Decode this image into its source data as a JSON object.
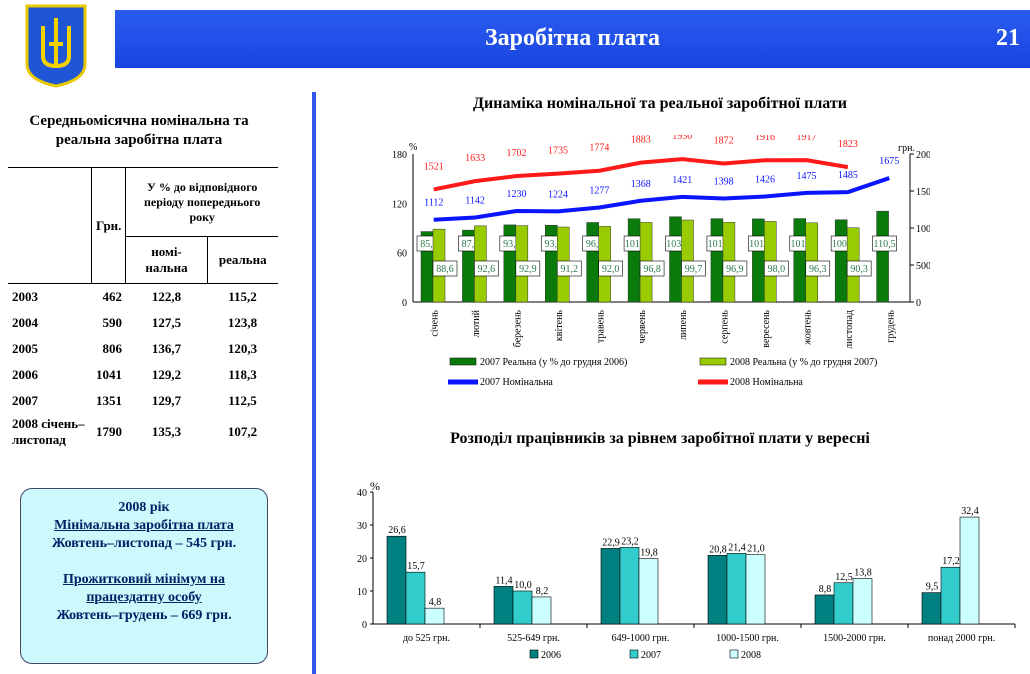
{
  "header": {
    "title": "Заробітна плата",
    "page": "21"
  },
  "left": {
    "title": "Середньомісячна номінальна та реальна заробітна плата",
    "col_uah": "Грн.",
    "col_group": "У % до відповідного періоду попереднього року",
    "col_nom": "номі-нальна",
    "col_real": "реальна",
    "rows": [
      [
        "2003",
        "462",
        "122,8",
        "115,2"
      ],
      [
        "2004",
        "590",
        "127,5",
        "123,8"
      ],
      [
        "2005",
        "806",
        "136,7",
        "120,3"
      ],
      [
        "2006",
        "1041",
        "129,2",
        "118,3"
      ],
      [
        "2007",
        "1351",
        "129,7",
        "112,5"
      ],
      [
        "2008 січень–листопад",
        "1790",
        "135,3",
        "107,2"
      ]
    ]
  },
  "box": {
    "l1": "2008 рік",
    "l2": "Мінімальна заробітна плата",
    "l3": "Жовтень–листопад – 545 грн.",
    "l4": "Прожитковий мінімум на працездатну особу",
    "l5": "Жовтень–грудень – 669 грн."
  },
  "chart_data": [
    {
      "type": "bar+line",
      "title": "Динаміка номінальної та реальної заробітної плати",
      "ylabel": "%",
      "y2label": "грн.",
      "ylim": [
        0,
        180
      ],
      "y2lim": [
        0,
        2000
      ],
      "yticks": [
        "0",
        "60",
        "120",
        "180"
      ],
      "y2ticks": [
        "0",
        "500",
        "1000",
        "1500",
        "2000"
      ],
      "categories": [
        "січень",
        "лютий",
        "березень",
        "квітень",
        "травень",
        "червень",
        "липень",
        "серпень",
        "вересень",
        "жовтень",
        "листопад",
        "грудень"
      ],
      "series": [
        {
          "name": "2007 Реальна (у % до грудня 2006)",
          "kind": "bar",
          "color": "#0a7a0a",
          "values": [
            85.7,
            87.4,
            93.8,
            93.4,
            96.7,
            101.3,
            103.7,
            101.4,
            101.1,
            101.5,
            100.0,
            110.5
          ],
          "labels": [
            "85,7",
            "87,4",
            "93,8",
            "93,4",
            "96,7",
            "101,3",
            "103,7",
            "101,4",
            "101,1",
            "101,5",
            "100,0",
            "110,5"
          ]
        },
        {
          "name": "2008 Реальна (у % до грудня 2007)",
          "kind": "bar",
          "color": "#99cc00",
          "values": [
            88.6,
            92.6,
            92.9,
            91.2,
            92.0,
            96.8,
            99.7,
            96.9,
            98.0,
            96.3,
            90.3,
            null
          ],
          "labels": [
            "88,6",
            "92,6",
            "92,9",
            "91,2",
            "92,0",
            "96,8",
            "99,7",
            "96,9",
            "98,0",
            "96,3",
            "90,3",
            ""
          ]
        },
        {
          "name": "2007 Номінальна",
          "kind": "line",
          "color": "#0a14ff",
          "values": [
            1112,
            1142,
            1230,
            1224,
            1277,
            1368,
            1421,
            1398,
            1426,
            1475,
            1485,
            1675
          ]
        },
        {
          "name": "2008 Номінальна",
          "kind": "line",
          "color": "#ff1a1a",
          "values": [
            1521,
            1633,
            1702,
            1735,
            1774,
            1883,
            1930,
            1872,
            1916,
            1917,
            1823,
            null
          ]
        }
      ],
      "legend": "bottom"
    },
    {
      "type": "bar",
      "title": "Розподіл працівників за рівнем заробітної плати у вересні",
      "ylabel": "%",
      "ylim": [
        0,
        40
      ],
      "yticks": [
        "0",
        "10",
        "20",
        "30",
        "40"
      ],
      "categories": [
        "до 525 грн.",
        "525-649 грн.",
        "649-1000 грн.",
        "1000-1500 грн.",
        "1500-2000 грн.",
        "понад 2000 грн."
      ],
      "series": [
        {
          "name": "2006",
          "color": "#008080",
          "values": [
            26.6,
            11.4,
            22.9,
            20.8,
            8.8,
            9.5
          ],
          "labels": [
            "26,6",
            "11,4",
            "22,9",
            "20,8",
            "8,8",
            "9,5"
          ]
        },
        {
          "name": "2007",
          "color": "#33cccc",
          "values": [
            15.7,
            10.0,
            23.2,
            21.4,
            12.5,
            17.2
          ],
          "labels": [
            "15,7",
            "10,0",
            "23,2",
            "21,4",
            "12,5",
            "17,2"
          ]
        },
        {
          "name": "2008",
          "color": "#ccffff",
          "values": [
            4.8,
            8.2,
            19.8,
            21.0,
            13.8,
            32.4
          ],
          "labels": [
            "4,8",
            "8,2",
            "19,8",
            "21,0",
            "13,8",
            "32,4"
          ]
        }
      ],
      "legend": "bottom"
    }
  ]
}
